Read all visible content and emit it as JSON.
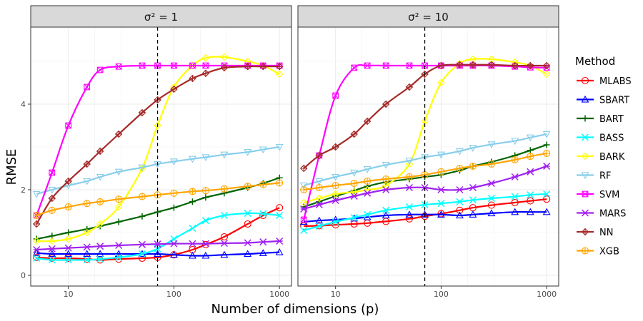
{
  "chart_data": {
    "type": "line",
    "ylabel": "RMSE",
    "xlabel": "Number of dimensions (p)",
    "x_scale": "log",
    "xlim": [
      4.4,
      1300
    ],
    "ylim": [
      -0.25,
      5.8
    ],
    "x_ticks": [
      10,
      100,
      1000
    ],
    "x_tick_labels": [
      "10",
      "100",
      "1000"
    ],
    "y_ticks": [
      0,
      2,
      4
    ],
    "y_tick_labels": [
      "0",
      "2",
      "4"
    ],
    "grid": true,
    "legend_position": "right",
    "legend_title": "Method",
    "vline_x": 70,
    "x": [
      5,
      7,
      10,
      15,
      20,
      30,
      50,
      70,
      100,
      150,
      200,
      300,
      500,
      700,
      1000
    ],
    "panels": [
      {
        "label": "σ² = 1",
        "series": [
          {
            "name": "MLABS",
            "color": "#ff0000",
            "values": [
              0.42,
              0.4,
              0.4,
              0.38,
              0.36,
              0.38,
              0.4,
              0.42,
              0.48,
              0.6,
              0.72,
              0.9,
              1.2,
              1.4,
              1.58
            ]
          },
          {
            "name": "SBART",
            "color": "#0000ff",
            "values": [
              0.52,
              0.5,
              0.5,
              0.5,
              0.5,
              0.5,
              0.5,
              0.5,
              0.48,
              0.46,
              0.46,
              0.48,
              0.5,
              0.52,
              0.54
            ]
          },
          {
            "name": "BART",
            "color": "#006400",
            "values": [
              0.85,
              0.92,
              1.0,
              1.08,
              1.15,
              1.25,
              1.38,
              1.48,
              1.58,
              1.72,
              1.82,
              1.92,
              2.05,
              2.15,
              2.28
            ]
          },
          {
            "name": "BASS",
            "color": "#00ffff",
            "values": [
              0.4,
              0.36,
              0.36,
              0.36,
              0.38,
              0.42,
              0.5,
              0.62,
              0.85,
              1.1,
              1.28,
              1.4,
              1.45,
              1.44,
              1.4
            ]
          },
          {
            "name": "BARK",
            "color": "#ffff00",
            "values": [
              0.8,
              0.8,
              0.85,
              1.0,
              1.2,
              1.6,
              2.5,
              3.5,
              4.4,
              4.9,
              5.08,
              5.1,
              5.0,
              4.9,
              4.7
            ]
          },
          {
            "name": "RF",
            "color": "#87ceeb",
            "values": [
              1.9,
              2.0,
              2.1,
              2.2,
              2.3,
              2.42,
              2.52,
              2.6,
              2.66,
              2.72,
              2.76,
              2.82,
              2.88,
              2.94,
              3.0
            ]
          },
          {
            "name": "SVM",
            "color": "#ff00ff",
            "values": [
              1.4,
              2.4,
              3.5,
              4.4,
              4.8,
              4.88,
              4.9,
              4.9,
              4.9,
              4.9,
              4.9,
              4.9,
              4.9,
              4.9,
              4.9
            ]
          },
          {
            "name": "MARS",
            "color": "#a020f0",
            "values": [
              0.6,
              0.62,
              0.64,
              0.66,
              0.68,
              0.7,
              0.72,
              0.73,
              0.74,
              0.74,
              0.74,
              0.75,
              0.76,
              0.78,
              0.8
            ]
          },
          {
            "name": "NN",
            "color": "#a52a2a",
            "values": [
              1.2,
              1.8,
              2.2,
              2.6,
              2.9,
              3.3,
              3.8,
              4.1,
              4.35,
              4.6,
              4.72,
              4.85,
              4.88,
              4.88,
              4.88
            ]
          },
          {
            "name": "XGB",
            "color": "#ffa500",
            "values": [
              1.4,
              1.52,
              1.6,
              1.68,
              1.72,
              1.78,
              1.84,
              1.88,
              1.92,
              1.96,
              1.98,
              2.02,
              2.08,
              2.12,
              2.16
            ]
          }
        ]
      },
      {
        "label": "σ² = 10",
        "series": [
          {
            "name": "MLABS",
            "color": "#ff0000",
            "values": [
              1.15,
              1.16,
              1.18,
              1.2,
              1.22,
              1.26,
              1.32,
              1.38,
              1.44,
              1.52,
              1.58,
              1.64,
              1.7,
              1.74,
              1.78
            ]
          },
          {
            "name": "SBART",
            "color": "#0000ff",
            "values": [
              1.25,
              1.28,
              1.3,
              1.33,
              1.36,
              1.4,
              1.42,
              1.42,
              1.42,
              1.4,
              1.42,
              1.45,
              1.48,
              1.48,
              1.48
            ]
          },
          {
            "name": "BART",
            "color": "#006400",
            "values": [
              1.6,
              1.72,
              1.85,
              1.98,
              2.08,
              2.18,
              2.25,
              2.3,
              2.35,
              2.45,
              2.55,
              2.65,
              2.8,
              2.92,
              3.05
            ]
          },
          {
            "name": "BASS",
            "color": "#00ffff",
            "values": [
              1.05,
              1.15,
              1.25,
              1.35,
              1.42,
              1.52,
              1.6,
              1.65,
              1.68,
              1.72,
              1.76,
              1.8,
              1.84,
              1.88,
              1.9
            ]
          },
          {
            "name": "BARK",
            "color": "#ffff00",
            "values": [
              1.7,
              1.8,
              1.9,
              1.95,
              2.0,
              2.1,
              2.6,
              3.6,
              4.5,
              4.95,
              5.05,
              5.05,
              4.98,
              4.9,
              4.7
            ]
          },
          {
            "name": "RF",
            "color": "#87ceeb",
            "values": [
              2.1,
              2.2,
              2.3,
              2.4,
              2.48,
              2.58,
              2.68,
              2.76,
              2.82,
              2.9,
              2.98,
              3.06,
              3.14,
              3.22,
              3.3
            ]
          },
          {
            "name": "SVM",
            "color": "#ff00ff",
            "values": [
              1.3,
              2.8,
              4.2,
              4.85,
              4.9,
              4.9,
              4.9,
              4.9,
              4.9,
              4.9,
              4.9,
              4.9,
              4.88,
              4.86,
              4.85
            ]
          },
          {
            "name": "MARS",
            "color": "#a020f0",
            "values": [
              1.55,
              1.65,
              1.75,
              1.85,
              1.92,
              2.0,
              2.05,
              2.05,
              2.0,
              2.0,
              2.05,
              2.15,
              2.3,
              2.42,
              2.55
            ]
          },
          {
            "name": "NN",
            "color": "#a52a2a",
            "values": [
              2.5,
              2.8,
              3.0,
              3.3,
              3.6,
              4.0,
              4.4,
              4.7,
              4.9,
              4.92,
              4.92,
              4.92,
              4.9,
              4.9,
              4.9
            ]
          },
          {
            "name": "XGB",
            "color": "#ffa500",
            "values": [
              2.0,
              2.05,
              2.1,
              2.15,
              2.2,
              2.25,
              2.3,
              2.35,
              2.42,
              2.5,
              2.55,
              2.6,
              2.7,
              2.78,
              2.85
            ]
          }
        ]
      }
    ],
    "legend": [
      {
        "name": "MLABS",
        "color": "#ff0000",
        "shape": "circle"
      },
      {
        "name": "SBART",
        "color": "#0000ff",
        "shape": "triangle-up"
      },
      {
        "name": "BART",
        "color": "#006400",
        "shape": "plus"
      },
      {
        "name": "BASS",
        "color": "#00ffff",
        "shape": "cross"
      },
      {
        "name": "BARK",
        "color": "#ffff00",
        "shape": "diamond"
      },
      {
        "name": "RF",
        "color": "#87ceeb",
        "shape": "triangle-down"
      },
      {
        "name": "SVM",
        "color": "#ff00ff",
        "shape": "square-cross"
      },
      {
        "name": "MARS",
        "color": "#a020f0",
        "shape": "asterisk"
      },
      {
        "name": "NN",
        "color": "#a52a2a",
        "shape": "diamond-plus"
      },
      {
        "name": "XGB",
        "color": "#ffa500",
        "shape": "circle-plus"
      }
    ]
  }
}
